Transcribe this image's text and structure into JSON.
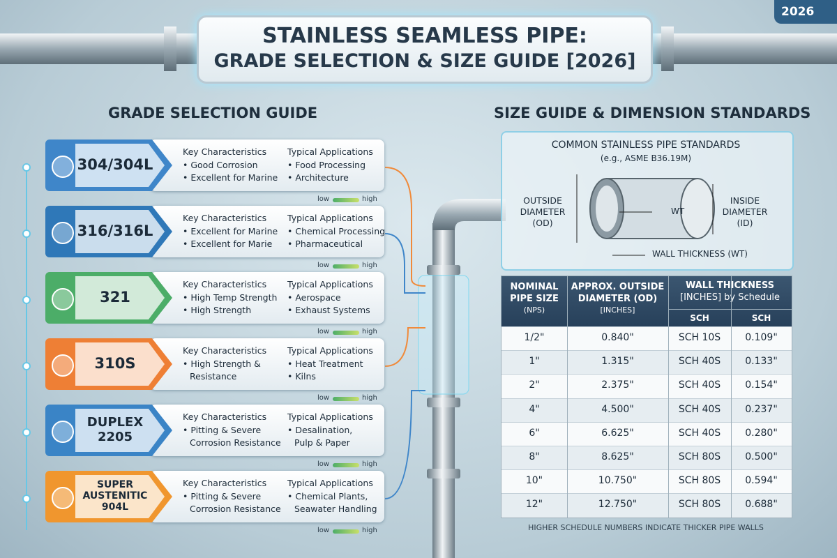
{
  "badge": "2026",
  "title": {
    "line1": "STAINLESS SEAMLESS PIPE:",
    "line2": "GRADE SELECTION & SIZE GUIDE [2026]"
  },
  "grade_guide": {
    "heading": "GRADE SELECTION GUIDE",
    "grades": [
      {
        "name": [
          "304/304L"
        ],
        "color": "#3f86c9",
        "characteristics_heading": "Key Characteristics",
        "characteristics": [
          "• Good Corrosion",
          "• Excellent for Marine"
        ],
        "applications_heading": "Typical Applications",
        "applications": [
          "• Food Processing",
          "• Architecture"
        ],
        "scale": [
          "low",
          "high"
        ]
      },
      {
        "name": [
          "316/316L"
        ],
        "color": "#2f78b8",
        "characteristics_heading": "Key Characteristics",
        "characteristics": [
          "• Excellent for Marine",
          "• Excellent for Marie"
        ],
        "applications_heading": "Typical Applications",
        "applications": [
          "• Chemical Processing",
          "• Pharmaceutical"
        ],
        "scale": [
          "low",
          "high"
        ]
      },
      {
        "name": [
          "321"
        ],
        "color": "#4cad68",
        "characteristics_heading": "Key Characteristics",
        "characteristics": [
          "• High Temp Strength",
          "• High Strength"
        ],
        "applications_heading": "Typical Applications",
        "applications": [
          "• Aerospace",
          "• Exhaust Systems"
        ],
        "scale": [
          "low",
          "high"
        ]
      },
      {
        "name": [
          "310S"
        ],
        "color": "#ee7f35",
        "characteristics_heading": "Key Characteristics",
        "characteristics": [
          "• High Strength &",
          "Resistance"
        ],
        "applications_heading": "Typical Applications",
        "applications": [
          "• Heat Treatment",
          "• Kilns"
        ],
        "scale": [
          "low",
          "high"
        ]
      },
      {
        "name": [
          "DUPLEX",
          "2205"
        ],
        "color": "#3a84c6",
        "characteristics_heading": "Key Characteristics",
        "characteristics": [
          "• Pitting & Severe",
          "Corrosion Resistance"
        ],
        "applications_heading": "Typical Applications",
        "applications": [
          "• Desalination,",
          "Pulp & Paper"
        ],
        "scale": [
          "low",
          "high"
        ]
      },
      {
        "name": [
          "SUPER",
          "AUSTENITIC",
          "904L"
        ],
        "color": "#f0962e",
        "characteristics_heading": "Key Characteristics",
        "characteristics": [
          "• Pitting & Severe",
          "Corrosion Resistance"
        ],
        "applications_heading": "Typical Applications",
        "applications": [
          "• Chemical Plants,",
          "Seawater Handling"
        ],
        "scale": [
          "low",
          "high"
        ]
      }
    ]
  },
  "size_guide": {
    "heading": "SIZE GUIDE & DIMENSION STANDARDS",
    "diagram": {
      "title": "COMMON STAINLESS PIPE STANDARDS",
      "subtitle": "(e.g., ASME B36.19M)",
      "od_label": [
        "OUTSIDE",
        "DIAMETER",
        "(OD)"
      ],
      "id_label": [
        "INSIDE",
        "DIAMETER",
        "(ID)"
      ],
      "wt_short": "WT",
      "wt_label": "WALL THICKNESS (WT)"
    },
    "table": {
      "headers": [
        [
          "NOMINAL",
          "PIPE SIZE",
          "(NPS)"
        ],
        [
          "APPROX. OUTSIDE",
          "DIAMETER (OD)",
          "[INCHES]"
        ],
        [
          "WALL THICKNESS",
          "[INCHES] by Schedule"
        ]
      ],
      "subheaders": [
        "SCH",
        "SCH"
      ],
      "rows": [
        [
          "1/2\"",
          "0.840\"",
          "SCH 10S",
          "0.109\""
        ],
        [
          "1\"",
          "1.315\"",
          "SCH 40S",
          "0.133\""
        ],
        [
          "2\"",
          "2.375\"",
          "SCH 40S",
          "0.154\""
        ],
        [
          "4\"",
          "4.500\"",
          "SCH 40S",
          "0.237\""
        ],
        [
          "6\"",
          "6.625\"",
          "SCH 40S",
          "0.280\""
        ],
        [
          "8\"",
          "8.625\"",
          "SCH 80S",
          "0.500\""
        ],
        [
          "10\"",
          "10.750\"",
          "SCH 80S",
          "0.594\""
        ],
        [
          "12\"",
          "12.750\"",
          "SCH 80S",
          "0.688\""
        ]
      ]
    },
    "footnote": "HIGHER SCHEDULE NUMBERS INDICATE THICKER PIPE WALLS"
  }
}
